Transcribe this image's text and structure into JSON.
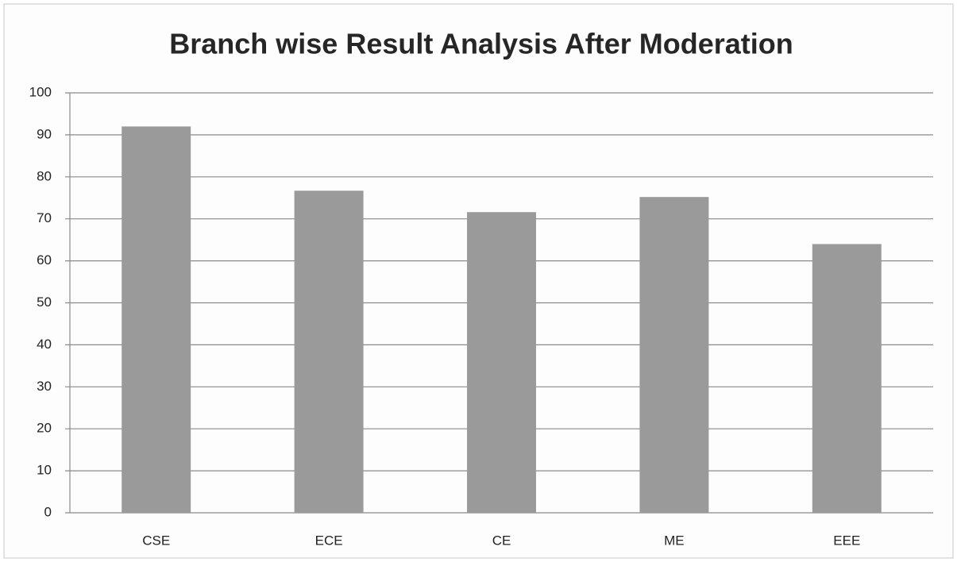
{
  "chart_data": {
    "type": "bar",
    "title": "Branch wise Result Analysis After Moderation",
    "categories": [
      "CSE",
      "ECE",
      "CE",
      "ME",
      "EEE"
    ],
    "values": [
      92,
      76.7,
      71.6,
      75.2,
      64
    ],
    "color": "#9a9a9a",
    "ylim": [
      0,
      100
    ],
    "yticks": [
      0,
      10,
      20,
      30,
      40,
      50,
      60,
      70,
      80,
      90,
      100
    ],
    "grid": true
  }
}
